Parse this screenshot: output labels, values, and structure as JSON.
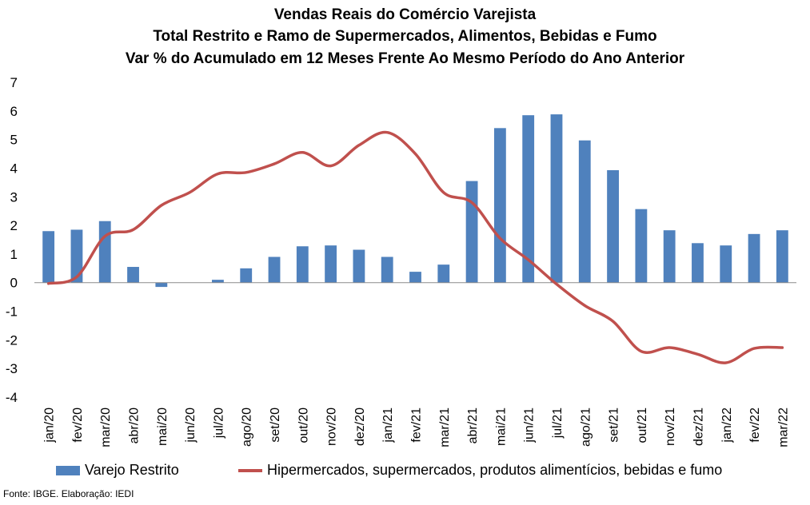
{
  "title_lines": [
    "Vendas Reais do Comércio Varejista",
    "Total Restrito e Ramo de Supermercados, Alimentos, Bebidas e Fumo",
    "Var % do Acumulado em 12 Meses Frente Ao Mesmo Período do Ano Anterior"
  ],
  "source": "Fonte: IBGE. Elaboração: IEDI",
  "chart_data": {
    "type": "bar",
    "title": "Vendas Reais do Comércio Varejista",
    "categories": [
      "jan/20",
      "fev/20",
      "mar/20",
      "abr/20",
      "mai/20",
      "jun/20",
      "jul/20",
      "ago/20",
      "set/20",
      "out/20",
      "nov/20",
      "dez/20",
      "jan/21",
      "fev/21",
      "mar/21",
      "abr/21",
      "mai/21",
      "jun/21",
      "jul/21",
      "ago/21",
      "set/21",
      "out/21",
      "nov/21",
      "dez/21",
      "jan/22",
      "fev/22",
      "mar/22"
    ],
    "ylim": [
      -4,
      7
    ],
    "yticks": [
      -4,
      -3,
      -2,
      -1,
      0,
      1,
      2,
      3,
      4,
      5,
      6,
      7
    ],
    "grid": false,
    "legend_position": "bottom",
    "series": [
      {
        "name": "Varejo Restrito",
        "type": "bar",
        "color": "#4F81BD",
        "values": [
          1.8,
          1.85,
          2.15,
          0.55,
          -0.15,
          0.0,
          0.1,
          0.5,
          0.9,
          1.27,
          1.3,
          1.15,
          0.9,
          0.38,
          0.63,
          3.55,
          5.4,
          5.85,
          5.88,
          4.97,
          3.93,
          2.57,
          1.83,
          1.38,
          1.3,
          1.7,
          1.83
        ]
      },
      {
        "name": "Hipermercados, supermercados, produtos alimentícios, bebidas e fumo",
        "type": "line",
        "color": "#C0504D",
        "values": [
          -0.03,
          0.2,
          1.62,
          1.85,
          2.7,
          3.15,
          3.8,
          3.85,
          4.15,
          4.55,
          4.08,
          4.8,
          5.25,
          4.5,
          3.15,
          2.8,
          1.55,
          0.8,
          -0.05,
          -0.8,
          -1.35,
          -2.4,
          -2.27,
          -2.5,
          -2.8,
          -2.3,
          -2.27
        ]
      }
    ]
  }
}
